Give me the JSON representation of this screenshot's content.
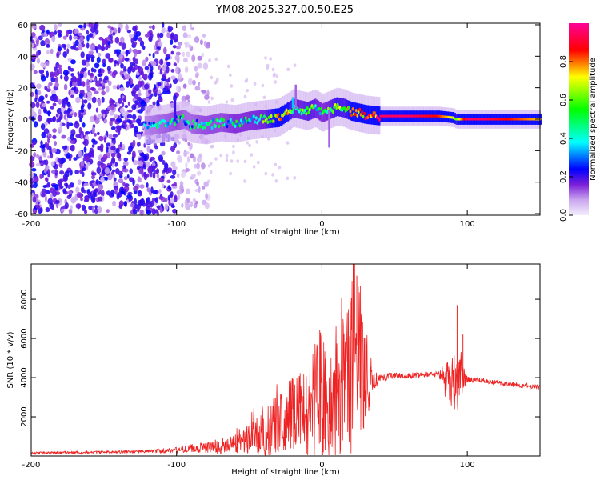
{
  "title": "YM08.2025.327.00.50.E25",
  "chart_data": [
    {
      "type": "heatmap",
      "panel": "spectrogram",
      "xlabel": "Height of straight line (km)",
      "ylabel": "Frequency (Hz)",
      "xlim": [
        -200,
        150
      ],
      "ylim": [
        -61,
        61
      ],
      "xticks": [
        -200,
        -100,
        0,
        100
      ],
      "yticks": [
        -60,
        -40,
        -20,
        0,
        20,
        40,
        60
      ],
      "colorbar": {
        "label": "Normalized spectral amplitude",
        "range": [
          0,
          1
        ],
        "ticks": [
          0.0,
          0.2,
          0.4,
          0.6,
          0.8
        ],
        "colormap": [
          "#f2ecfb",
          "#7b1fd8",
          "#0000ff",
          "#00ffff",
          "#00ff00",
          "#ffff00",
          "#ff0000",
          "#ff00ff"
        ]
      },
      "ridge": {
        "x": [
          -120,
          -110,
          -100,
          -95,
          -90,
          -80,
          -70,
          -60,
          -50,
          -40,
          -30,
          -25,
          -20,
          -15,
          -10,
          -5,
          0,
          5,
          10,
          15,
          20,
          25,
          30,
          40,
          50,
          60,
          70,
          80,
          90,
          92,
          100,
          110,
          120,
          130,
          140,
          150
        ],
        "freq": [
          -4,
          -3,
          -1,
          0,
          -3,
          -4,
          -2,
          -3,
          -1,
          0,
          1,
          4,
          7,
          6,
          5,
          7,
          4,
          6,
          8,
          7,
          5,
          4,
          3,
          2,
          2,
          2,
          2,
          2,
          1,
          0,
          0,
          0,
          0,
          0,
          0,
          0
        ],
        "amplitude": [
          0.3,
          0.35,
          0.4,
          0.35,
          0.35,
          0.4,
          0.4,
          0.45,
          0.45,
          0.5,
          0.75,
          0.7,
          0.5,
          0.5,
          0.55,
          0.5,
          0.45,
          0.5,
          0.6,
          0.55,
          0.7,
          0.75,
          0.8,
          0.95,
          0.95,
          0.95,
          0.9,
          0.85,
          0.7,
          0.6,
          0.95,
          0.95,
          0.9,
          0.85,
          0.8,
          0.75
        ]
      },
      "noise_region": {
        "x_range": [
          -200,
          -100
        ],
        "freq_range": [
          -60,
          60
        ],
        "amplitude": 0.2
      }
    },
    {
      "type": "line",
      "panel": "snr",
      "xlabel": "Height of straight line (km)",
      "ylabel": "SNR (10 * v/v)",
      "xlim": [
        -200,
        150
      ],
      "ylim": [
        0,
        9800
      ],
      "xticks": [
        -200,
        -100,
        0,
        100
      ],
      "yticks": [
        2000,
        4000,
        6000,
        8000
      ],
      "color": "#ee2222",
      "series": [
        {
          "name": "SNR",
          "x": [
            -200,
            -180,
            -160,
            -140,
            -120,
            -100,
            -90,
            -80,
            -70,
            -60,
            -55,
            -50,
            -45,
            -40,
            -35,
            -30,
            -25,
            -20,
            -15,
            -10,
            -5,
            0,
            5,
            10,
            15,
            20,
            22,
            25,
            30,
            35,
            40,
            50,
            60,
            70,
            80,
            85,
            90,
            92,
            95,
            100,
            110,
            120,
            130,
            140,
            150
          ],
          "y": [
            150,
            170,
            180,
            200,
            250,
            300,
            400,
            450,
            500,
            600,
            700,
            900,
            1100,
            1200,
            1400,
            1600,
            2000,
            2400,
            2200,
            2100,
            2800,
            3000,
            2600,
            2700,
            3500,
            4200,
            7000,
            5000,
            3800,
            4000,
            4000,
            4100,
            4100,
            4150,
            4150,
            3800,
            3700,
            3600,
            4000,
            3900,
            3850,
            3750,
            3650,
            3600,
            3500
          ],
          "spread": [
            60,
            60,
            70,
            70,
            80,
            150,
            200,
            300,
            400,
            500,
            600,
            900,
            1200,
            1400,
            1500,
            1500,
            1800,
            2000,
            2200,
            2600,
            3000,
            3200,
            3000,
            3200,
            3800,
            4500,
            5500,
            4000,
            2500,
            800,
            200,
            150,
            150,
            150,
            150,
            900,
            1400,
            1800,
            1200,
            150,
            120,
            120,
            120,
            120,
            120
          ],
          "peaks": [
            {
              "x": 21.5,
              "y": 9800
            },
            {
              "x": 24,
              "y": 9200
            },
            {
              "x": 93,
              "y": 7700
            },
            {
              "x": 97,
              "y": 6200
            },
            {
              "x": -1,
              "y": 6300
            },
            {
              "x": -20,
              "y": 3900
            }
          ]
        }
      ]
    }
  ]
}
